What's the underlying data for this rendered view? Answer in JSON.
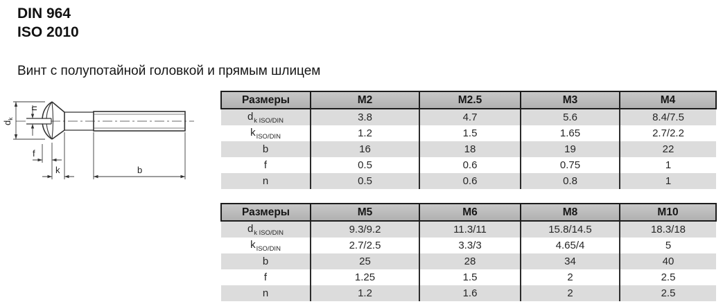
{
  "page": {
    "standard_line1": "DIN 964",
    "standard_line2": "ISO 2010",
    "subtitle": "Винт с полупотайной головкой и прямым шлицем"
  },
  "drawing": {
    "description": "side view of raised countersunk head screw with straight slot",
    "labels": {
      "dk_main": "d",
      "dk_sub": "k",
      "n": "n",
      "f": "f",
      "k": "k",
      "b": "b"
    }
  },
  "tables": [
    {
      "header": [
        "Размеры",
        "M2",
        "M2.5",
        "M3",
        "M4"
      ],
      "rows": [
        {
          "label_main": "d",
          "label_sub": "k ISO/DIN",
          "values": [
            "3.8",
            "4.7",
            "5.6",
            "8.4/7.5"
          ]
        },
        {
          "label_main": "k",
          "label_sub": "ISO/DIN",
          "values": [
            "1.2",
            "1.5",
            "1.65",
            "2.7/2.2"
          ]
        },
        {
          "label_main": "b",
          "label_sub": "",
          "values": [
            "16",
            "18",
            "19",
            "22"
          ]
        },
        {
          "label_main": "f",
          "label_sub": "",
          "values": [
            "0.5",
            "0.6",
            "0.75",
            "1"
          ]
        },
        {
          "label_main": "n",
          "label_sub": "",
          "values": [
            "0.5",
            "0.6",
            "0.8",
            "1"
          ]
        }
      ]
    },
    {
      "header": [
        "Размеры",
        "M5",
        "M6",
        "M8",
        "M10"
      ],
      "rows": [
        {
          "label_main": "d",
          "label_sub": "k ISO/DIN",
          "values": [
            "9.3/9.2",
            "11.3/11",
            "15.8/14.5",
            "18.3/18"
          ]
        },
        {
          "label_main": "k",
          "label_sub": "ISO/DIN",
          "values": [
            "2.7/2.5",
            "3.3/3",
            "4.65/4",
            "5"
          ]
        },
        {
          "label_main": "b",
          "label_sub": "",
          "values": [
            "25",
            "28",
            "34",
            "40"
          ]
        },
        {
          "label_main": "f",
          "label_sub": "",
          "values": [
            "1.25",
            "1.5",
            "2",
            "2.5"
          ]
        },
        {
          "label_main": "n",
          "label_sub": "",
          "values": [
            "1.2",
            "1.6",
            "2",
            "2.5"
          ]
        }
      ]
    }
  ],
  "colors": {
    "header_bg": "#bcbcbc",
    "row_alt_bg": "#dcdcdc",
    "row_bg": "#ffffff",
    "border": "#1c1c1c",
    "text": "#1d1d1d"
  }
}
